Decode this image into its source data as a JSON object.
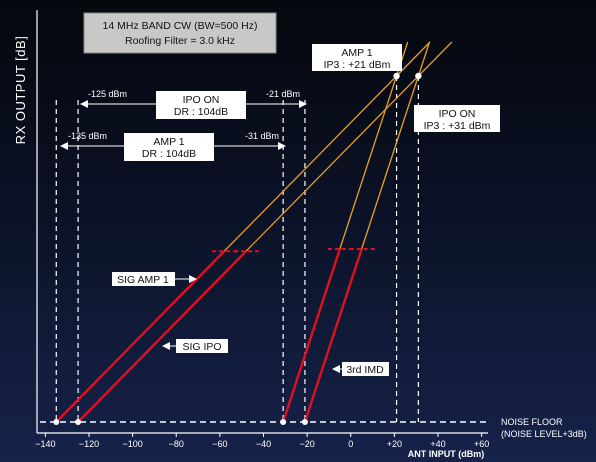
{
  "chart_data": {
    "type": "line",
    "title": "14 MHz BAND CW (BW=500 Hz)",
    "subtitle": "Roofing Filter = 3.0 kHz",
    "xlabel": "ANT INPUT (dBm)",
    "ylabel": "RX OUTPUT [dB]",
    "xlim": [
      -142,
      62
    ],
    "x_ticks": [
      -140,
      -120,
      -100,
      -80,
      -60,
      -40,
      -20,
      0,
      20,
      40,
      60
    ],
    "x_tick_labels": [
      "−140",
      "−120",
      "−100",
      "−80",
      "−60",
      "−40",
      "−20",
      "0",
      "+20",
      "+40",
      "+60"
    ],
    "noise_floor": {
      "label_1": "NOISE FLOOR",
      "label_2": "(NOISE LEVEL+3dB)"
    },
    "colors": {
      "signal": "#e01020",
      "extrapolation": "#e8a020",
      "guide": "#ffffff"
    },
    "series": [
      {
        "name": "SIG AMP 1",
        "x_start": -135,
        "x_solid_end": -58,
        "x_ip3": 21
      },
      {
        "name": "SIG IPO",
        "x_start": -125,
        "x_solid_end": -48,
        "x_ip3": 31
      },
      {
        "name": "3rd IMD",
        "x_start": -31,
        "x_solid_end": -5,
        "x_ip3": 21
      },
      {
        "name": "3rd IMD",
        "x_start": -21,
        "x_solid_end": 5,
        "x_ip3": 31
      }
    ],
    "ranges": [
      {
        "name": "AMP 1",
        "line1": "AMP 1",
        "line2": "DR : 104dB",
        "left": -135,
        "right": -31,
        "left_label": "-135 dBm",
        "right_label": "-31 dBm"
      },
      {
        "name": "IPO ON",
        "line1": "IPO ON",
        "line2": "DR : 104dB",
        "left": -125,
        "right": -21,
        "left_label": "-125 dBm",
        "right_label": "-21 dBm"
      }
    ],
    "intercepts": [
      {
        "name": "AMP 1",
        "line1": "AMP 1",
        "line2": "IP3 : +21 dBm",
        "x": 21
      },
      {
        "name": "IPO ON",
        "line1": "IPO ON",
        "line2": "IP3 : +31 dBm",
        "x": 31
      }
    ],
    "callouts": [
      "SIG AMP 1",
      "SIG IPO",
      "3rd IMD"
    ]
  }
}
